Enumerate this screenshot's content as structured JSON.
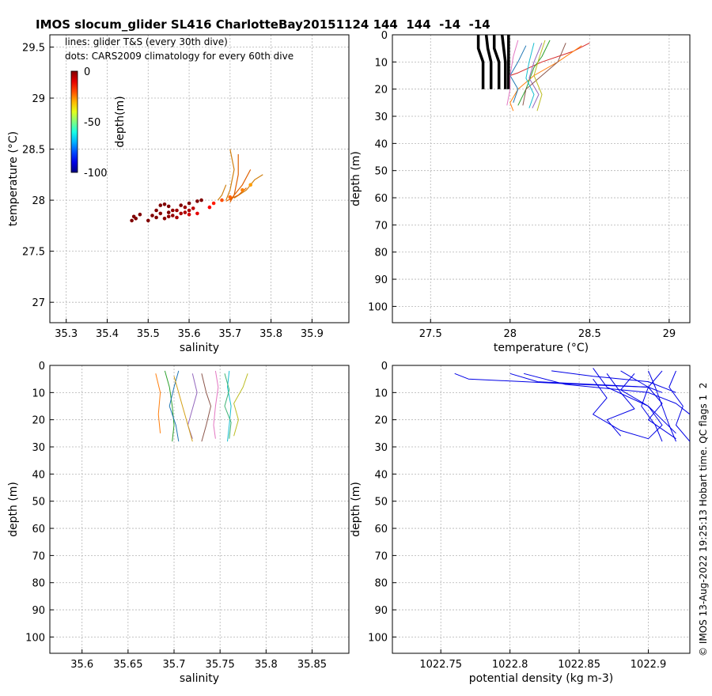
{
  "title": "IMOS slocum_glider SL416 CharlotteBay20151124 144  144  -14  -14",
  "credit": "© IMOS 13-Aug-2022 19:25:13 Hobart time. QC flags 1  2",
  "colors": {
    "grid": "#b4b4b4",
    "density": "#0000e6",
    "profile": "#000000"
  },
  "chart_data": [
    {
      "id": "ts",
      "type": "scatter",
      "xlabel": "salinity",
      "ylabel": "temperature (°C)",
      "xlim": [
        35.26,
        35.99
      ],
      "ylim": [
        26.8,
        29.62
      ],
      "xticks": [
        "35.3",
        "35.4",
        "35.5",
        "35.6",
        "35.7",
        "35.8",
        "35.9"
      ],
      "yticks": [
        "27",
        "27.5",
        "28",
        "28.5",
        "29",
        "29.5"
      ],
      "grid": true,
      "annotations": [
        "lines: glider T&S (every 30th dive)",
        "dots: CARS2009 climatology for every 60th dive"
      ],
      "colorbar": {
        "label": "depth(m)",
        "ticks": [
          "0",
          "-50",
          "-100"
        ],
        "range": [
          -100,
          0
        ]
      },
      "lines": [
        {
          "depth_range": [
            0,
            20
          ],
          "points": [
            [
              35.7,
              28.5
            ],
            [
              35.71,
              28.3
            ],
            [
              35.7,
              28.1
            ],
            [
              35.69,
              28.0
            ]
          ]
        },
        {
          "depth_range": [
            0,
            25
          ],
          "points": [
            [
              35.72,
              28.45
            ],
            [
              35.72,
              28.25
            ],
            [
              35.71,
              28.05
            ],
            [
              35.7,
              27.98
            ]
          ]
        },
        {
          "depth_range": [
            0,
            22
          ],
          "points": [
            [
              35.78,
              28.25
            ],
            [
              35.76,
              28.2
            ],
            [
              35.74,
              28.1
            ],
            [
              35.71,
              28.02
            ]
          ]
        },
        {
          "depth_range": [
            0,
            20
          ],
          "points": [
            [
              35.75,
              28.3
            ],
            [
              35.73,
              28.15
            ],
            [
              35.7,
              28.0
            ]
          ]
        },
        {
          "depth_range": [
            0,
            18
          ],
          "points": [
            [
              35.69,
              28.15
            ],
            [
              35.68,
              28.05
            ],
            [
              35.67,
              28.0
            ]
          ]
        },
        {
          "depth_range": [
            0,
            25
          ],
          "points": [
            [
              35.74,
              28.12
            ],
            [
              35.72,
              28.05
            ],
            [
              35.69,
              27.99
            ]
          ]
        }
      ],
      "dots": [
        {
          "s": 35.46,
          "t": 27.8,
          "d": 0
        },
        {
          "s": 35.47,
          "t": 27.82,
          "d": 0
        },
        {
          "s": 35.48,
          "t": 27.86,
          "d": 0
        },
        {
          "s": 35.465,
          "t": 27.84,
          "d": 0
        },
        {
          "s": 35.5,
          "t": 27.8,
          "d": 0
        },
        {
          "s": 35.52,
          "t": 27.9,
          "d": 0
        },
        {
          "s": 35.53,
          "t": 27.95,
          "d": 0
        },
        {
          "s": 35.54,
          "t": 27.96,
          "d": 0
        },
        {
          "s": 35.55,
          "t": 27.88,
          "d": 0
        },
        {
          "s": 35.56,
          "t": 27.85,
          "d": -2
        },
        {
          "s": 35.57,
          "t": 27.9,
          "d": -3
        },
        {
          "s": 35.58,
          "t": 27.95,
          "d": 0
        },
        {
          "s": 35.59,
          "t": 27.88,
          "d": -5
        },
        {
          "s": 35.6,
          "t": 27.97,
          "d": 0
        },
        {
          "s": 35.61,
          "t": 27.92,
          "d": -6
        },
        {
          "s": 35.62,
          "t": 27.99,
          "d": 0
        },
        {
          "s": 35.63,
          "t": 28.0,
          "d": 0
        },
        {
          "s": 35.52,
          "t": 27.83,
          "d": 0
        },
        {
          "s": 35.54,
          "t": 27.82,
          "d": -1
        },
        {
          "s": 35.55,
          "t": 27.84,
          "d": -2
        },
        {
          "s": 35.57,
          "t": 27.83,
          "d": -4
        },
        {
          "s": 35.58,
          "t": 27.87,
          "d": -4
        },
        {
          "s": 35.6,
          "t": 27.86,
          "d": -8
        },
        {
          "s": 35.62,
          "t": 27.87,
          "d": -10
        },
        {
          "s": 35.65,
          "t": 27.93,
          "d": -12
        },
        {
          "s": 35.66,
          "t": 27.97,
          "d": -15
        },
        {
          "s": 35.68,
          "t": 28.0,
          "d": -20
        },
        {
          "s": 35.7,
          "t": 28.03,
          "d": -22
        },
        {
          "s": 35.73,
          "t": 28.1,
          "d": -25
        },
        {
          "s": 35.75,
          "t": 28.15,
          "d": -28
        },
        {
          "s": 35.53,
          "t": 27.87,
          "d": -1
        },
        {
          "s": 35.56,
          "t": 27.9,
          "d": -2
        },
        {
          "s": 35.59,
          "t": 27.93,
          "d": -3
        },
        {
          "s": 35.51,
          "t": 27.85,
          "d": 0
        },
        {
          "s": 35.55,
          "t": 27.94,
          "d": 0
        },
        {
          "s": 35.6,
          "t": 27.9,
          "d": -4
        }
      ]
    },
    {
      "id": "temp_depth",
      "type": "line",
      "xlabel": "temperature (°C)",
      "ylabel": "depth (m)",
      "xlim": [
        27.26,
        29.13
      ],
      "ylim": [
        0,
        106
      ],
      "xticks": [
        "27.5",
        "28",
        "28.5",
        "29"
      ],
      "yticks": [
        "0",
        "10",
        "20",
        "30",
        "40",
        "50",
        "60",
        "70",
        "80",
        "90",
        "100"
      ],
      "grid": true,
      "climatology_profiles": [
        {
          "t": [
            27.8,
            27.8,
            27.83,
            27.83
          ],
          "z": [
            0,
            5,
            10,
            20
          ]
        },
        {
          "t": [
            27.85,
            27.86,
            27.88,
            27.88
          ],
          "z": [
            0,
            5,
            10,
            20
          ]
        },
        {
          "t": [
            27.9,
            27.9,
            27.93,
            27.93
          ],
          "z": [
            0,
            5,
            10,
            20
          ]
        },
        {
          "t": [
            27.95,
            27.96,
            27.97,
            27.97
          ],
          "z": [
            0,
            5,
            10,
            20
          ]
        },
        {
          "t": [
            27.99,
            27.99,
            27.99,
            27.99
          ],
          "z": [
            0,
            5,
            10,
            20
          ]
        }
      ],
      "profiles": [
        {
          "t": [
            28.5,
            28.4,
            28.2,
            28.05,
            28.0
          ],
          "z": [
            3,
            6,
            10,
            14,
            15
          ]
        },
        {
          "t": [
            28.45,
            28.3,
            28.15,
            28.05,
            28.0,
            28.02
          ],
          "z": [
            4,
            10,
            15,
            20,
            25,
            28
          ]
        },
        {
          "t": [
            28.25,
            28.2,
            28.15,
            28.1,
            28.05
          ],
          "z": [
            2,
            8,
            12,
            20,
            26
          ]
        },
        {
          "t": [
            28.1,
            28.05,
            28.0,
            28.05,
            28.02
          ],
          "z": [
            4,
            10,
            15,
            20,
            25
          ]
        },
        {
          "t": [
            28.2,
            28.15,
            28.12,
            28.18,
            28.14
          ],
          "z": [
            3,
            10,
            16,
            22,
            27
          ]
        },
        {
          "t": [
            28.35,
            28.3,
            28.2,
            28.1,
            28.08
          ],
          "z": [
            3,
            10,
            15,
            20,
            26
          ]
        },
        {
          "t": [
            28.05,
            28.02,
            28.0,
            28.0,
            27.98
          ],
          "z": [
            2,
            8,
            15,
            20,
            26
          ]
        },
        {
          "t": [
            28.15,
            28.12,
            28.1,
            28.15,
            28.12
          ],
          "z": [
            3,
            10,
            16,
            22,
            27
          ]
        },
        {
          "t": [
            28.22,
            28.18,
            28.15,
            28.2,
            28.17
          ],
          "z": [
            2,
            9,
            15,
            22,
            28
          ]
        }
      ]
    },
    {
      "id": "sal_depth",
      "type": "line",
      "xlabel": "salinity",
      "ylabel": "depth (m)",
      "xlim": [
        35.565,
        35.89
      ],
      "ylim": [
        0,
        106
      ],
      "xticks": [
        "35.6",
        "35.65",
        "35.7",
        "35.75",
        "35.8",
        "35.85"
      ],
      "yticks": [
        "0",
        "10",
        "20",
        "30",
        "40",
        "50",
        "60",
        "70",
        "80",
        "90",
        "100"
      ],
      "grid": true,
      "profiles": [
        {
          "s": [
            35.68,
            35.685,
            35.683,
            35.685
          ],
          "z": [
            3,
            10,
            18,
            25
          ]
        },
        {
          "s": [
            35.69,
            35.695,
            35.698,
            35.7,
            35.698
          ],
          "z": [
            2,
            8,
            15,
            22,
            28
          ]
        },
        {
          "s": [
            35.705,
            35.7,
            35.695,
            35.702,
            35.705
          ],
          "z": [
            2,
            8,
            15,
            22,
            28
          ]
        },
        {
          "s": [
            35.72,
            35.725,
            35.72,
            35.715,
            35.72
          ],
          "z": [
            3,
            10,
            16,
            22,
            27
          ]
        },
        {
          "s": [
            35.73,
            35.735,
            35.74,
            35.735,
            35.73
          ],
          "z": [
            3,
            10,
            15,
            22,
            28
          ]
        },
        {
          "s": [
            35.745,
            35.748,
            35.745,
            35.743,
            35.745
          ],
          "z": [
            2,
            8,
            15,
            22,
            27
          ]
        },
        {
          "s": [
            35.76,
            35.758,
            35.762,
            35.76,
            35.758
          ],
          "z": [
            2,
            8,
            15,
            22,
            28
          ]
        },
        {
          "s": [
            35.78,
            35.775,
            35.765,
            35.77,
            35.765
          ],
          "z": [
            3,
            8,
            14,
            20,
            26
          ]
        },
        {
          "s": [
            35.7,
            35.705,
            35.71,
            35.715,
            35.72
          ],
          "z": [
            4,
            10,
            16,
            22,
            28
          ]
        },
        {
          "s": [
            35.755,
            35.76,
            35.755,
            35.762,
            35.76
          ],
          "z": [
            3,
            9,
            15,
            21,
            27
          ]
        }
      ]
    },
    {
      "id": "dens_depth",
      "type": "line",
      "xlabel": "potential density (kg m-3)",
      "ylabel": "depth (m)",
      "xlim": [
        1022.715,
        1022.93
      ],
      "ylim": [
        0,
        106
      ],
      "xticks": [
        "1022.75",
        "1022.8",
        "1022.85",
        "1022.9"
      ],
      "yticks": [
        "0",
        "10",
        "20",
        "30",
        "40",
        "50",
        "60",
        "70",
        "80",
        "90",
        "100"
      ],
      "grid": true,
      "profiles": [
        {
          "d": [
            1022.76,
            1022.77,
            1022.85,
            1022.9
          ],
          "z": [
            3,
            5,
            7,
            8
          ]
        },
        {
          "d": [
            1022.8,
            1022.82,
            1022.9,
            1022.91
          ],
          "z": [
            3,
            6,
            8,
            10
          ]
        },
        {
          "d": [
            1022.81,
            1022.84,
            1022.9,
            1022.92,
            1022.93
          ],
          "z": [
            3,
            7,
            10,
            14,
            18
          ]
        },
        {
          "d": [
            1022.83,
            1022.86,
            1022.9,
            1022.92
          ],
          "z": [
            2,
            4,
            6,
            10
          ]
        },
        {
          "d": [
            1022.86,
            1022.87,
            1022.9,
            1022.91,
            1022.92
          ],
          "z": [
            1,
            8,
            15,
            20,
            25
          ]
        },
        {
          "d": [
            1022.88,
            1022.9,
            1022.91,
            1022.9,
            1022.92
          ],
          "z": [
            2,
            8,
            14,
            20,
            27
          ]
        },
        {
          "d": [
            1022.9,
            1022.905,
            1022.91,
            1022.915,
            1022.92
          ],
          "z": [
            2,
            8,
            15,
            22,
            28
          ]
        },
        {
          "d": [
            1022.91,
            1022.9,
            1022.895,
            1022.905,
            1022.91
          ],
          "z": [
            2,
            8,
            15,
            22,
            28
          ]
        },
        {
          "d": [
            1022.92,
            1022.915,
            1022.925,
            1022.92,
            1022.93
          ],
          "z": [
            2,
            8,
            15,
            22,
            28
          ]
        },
        {
          "d": [
            1022.87,
            1022.88,
            1022.89,
            1022.87,
            1022.88
          ],
          "z": [
            3,
            10,
            16,
            20,
            26
          ]
        },
        {
          "d": [
            1022.86,
            1022.87,
            1022.86,
            1022.88,
            1022.9
          ],
          "z": [
            5,
            12,
            18,
            24,
            27
          ]
        },
        {
          "d": [
            1022.89,
            1022.88,
            1022.9,
            1022.91,
            1022.9
          ],
          "z": [
            3,
            9,
            15,
            22,
            27
          ]
        }
      ]
    }
  ]
}
